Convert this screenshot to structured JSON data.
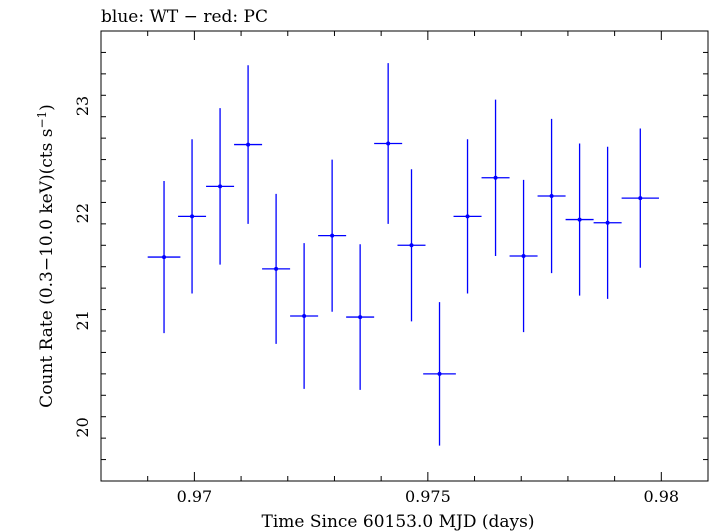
{
  "chart_data": {
    "type": "scatter",
    "title": "blue: WT − red: PC",
    "xlabel": "Time Since 60153.0 MJD (days)",
    "ylabel_main": "Count Rate (0.3−10.0 keV)(cts s",
    "ylabel_sup": "−1",
    "ylabel_end": ")",
    "xlim": [
      0.968,
      0.981
    ],
    "ylim": [
      19.5,
      23.7
    ],
    "xticks": [
      0.97,
      0.975,
      0.98
    ],
    "xtick_labels": [
      "0.97",
      "0.975",
      "0.98"
    ],
    "yticks": [
      20,
      21,
      22,
      23
    ],
    "ytick_labels": [
      "20",
      "21",
      "22",
      "23"
    ],
    "grid": false,
    "series": [
      {
        "color": "#0000ff",
        "x": [
          0.96935,
          0.96995,
          0.97055,
          0.97115,
          0.97175,
          0.97235,
          0.97295,
          0.97355,
          0.97415,
          0.97465,
          0.97525,
          0.97585,
          0.97645,
          0.97705,
          0.97765,
          0.97825,
          0.97885,
          0.97955
        ],
        "xerr": [
          0.00035,
          0.0003,
          0.0003,
          0.0003,
          0.0003,
          0.0003,
          0.0003,
          0.0003,
          0.0003,
          0.0003,
          0.00035,
          0.0003,
          0.0003,
          0.0003,
          0.0003,
          0.0003,
          0.0003,
          0.0004
        ],
        "y": [
          21.59,
          21.97,
          22.25,
          22.64,
          21.48,
          21.04,
          21.79,
          21.03,
          22.65,
          21.7,
          20.5,
          21.97,
          22.33,
          21.6,
          22.16,
          21.94,
          21.91,
          22.14
        ],
        "yerr": [
          0.71,
          0.72,
          0.73,
          0.74,
          0.7,
          0.68,
          0.71,
          0.68,
          0.75,
          0.71,
          0.67,
          0.72,
          0.73,
          0.71,
          0.72,
          0.71,
          0.71,
          0.65
        ]
      }
    ]
  }
}
